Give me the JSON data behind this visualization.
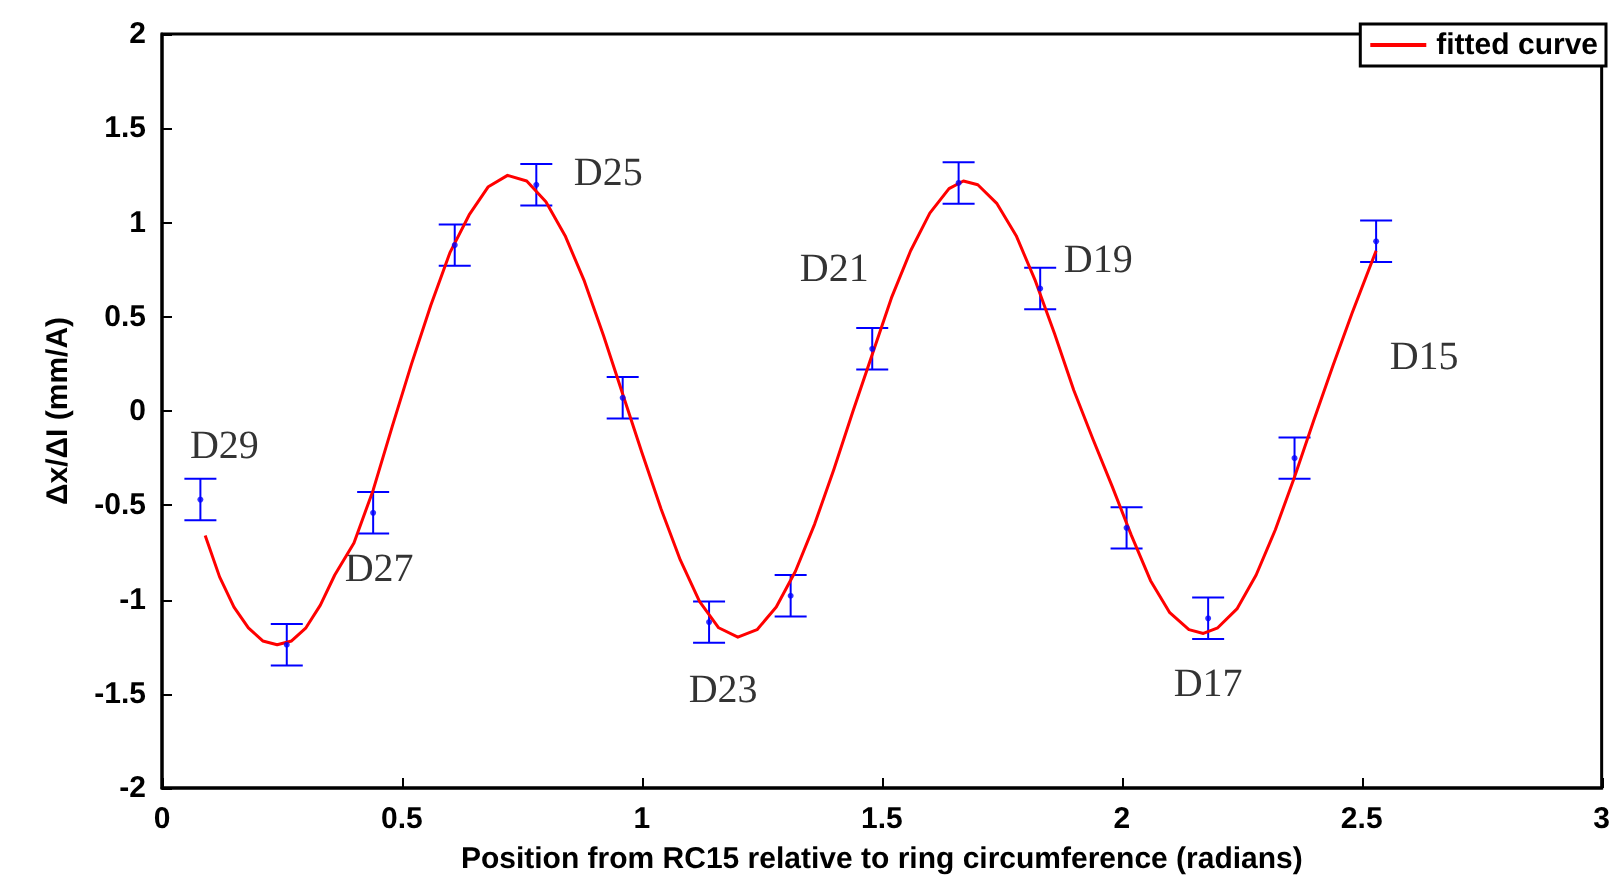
{
  "chart_data": {
    "type": "scatter",
    "xlabel": "Position from RC15 relative to ring circumference (radians)",
    "ylabel": "Δx/ΔI (mm/A)",
    "xlim": [
      0,
      3
    ],
    "xticks": [
      0,
      0.5,
      1,
      1.5,
      2,
      2.5,
      3
    ],
    "ylim": [
      -2,
      2
    ],
    "yticks": [
      -2,
      -1.5,
      -1,
      -0.5,
      0,
      0.5,
      1,
      1.5,
      2
    ],
    "grid": false,
    "legend": "top right",
    "series": [
      {
        "color": "#0000ff",
        "marker": "circle",
        "x": [
          0.08,
          0.26,
          0.44,
          0.61,
          0.78,
          0.96,
          1.14,
          1.31,
          1.48,
          1.66,
          1.83,
          2.01,
          2.18,
          2.36,
          2.53
        ],
        "values": [
          -0.47,
          -1.24,
          -0.54,
          0.88,
          1.2,
          0.07,
          -1.12,
          -0.98,
          0.33,
          1.21,
          0.65,
          -0.62,
          -1.1,
          -0.25,
          0.9
        ],
        "errors": [
          0.11,
          0.11,
          0.11,
          0.11,
          0.11,
          0.11,
          0.11,
          0.11,
          0.11,
          0.11,
          0.11,
          0.11,
          0.11,
          0.11,
          0.11
        ]
      },
      {
        "type": "line",
        "name": "fitted curve",
        "color": "#ff0000",
        "marker": "none",
        "line_style": "solid",
        "x": [
          0.09,
          0.12,
          0.15,
          0.18,
          0.21,
          0.24,
          0.27,
          0.3,
          0.33,
          0.36,
          0.4,
          0.44,
          0.48,
          0.52,
          0.56,
          0.6,
          0.64,
          0.68,
          0.72,
          0.76,
          0.8,
          0.84,
          0.88,
          0.92,
          0.96,
          1.0,
          1.04,
          1.08,
          1.12,
          1.16,
          1.2,
          1.24,
          1.28,
          1.32,
          1.36,
          1.4,
          1.44,
          1.48,
          1.52,
          1.56,
          1.6,
          1.64,
          1.67,
          1.7,
          1.74,
          1.78,
          1.82,
          1.86,
          1.9,
          1.94,
          1.98,
          2.02,
          2.06,
          2.1,
          2.14,
          2.17,
          2.2,
          2.24,
          2.28,
          2.32,
          2.36,
          2.4,
          2.44,
          2.48,
          2.53
        ],
        "values": [
          -0.66,
          -0.88,
          -1.04,
          -1.15,
          -1.22,
          -1.24,
          -1.22,
          -1.15,
          -1.03,
          -0.87,
          -0.7,
          -0.42,
          -0.08,
          0.25,
          0.56,
          0.84,
          1.04,
          1.19,
          1.25,
          1.22,
          1.11,
          0.93,
          0.69,
          0.4,
          0.09,
          -0.22,
          -0.52,
          -0.79,
          -1.01,
          -1.15,
          -1.2,
          -1.16,
          -1.04,
          -0.85,
          -0.6,
          -0.31,
          0.0,
          0.3,
          0.6,
          0.85,
          1.05,
          1.18,
          1.22,
          1.2,
          1.1,
          0.93,
          0.69,
          0.41,
          0.11,
          -0.15,
          -0.4,
          -0.66,
          -0.9,
          -1.07,
          -1.16,
          -1.18,
          -1.15,
          -1.05,
          -0.87,
          -0.63,
          -0.35,
          -0.05,
          0.24,
          0.52,
          0.85
        ]
      }
    ],
    "annotations": [
      {
        "text": "D29",
        "x": 0.08,
        "y": -0.47
      },
      {
        "text": "D27",
        "x": 0.44,
        "y": -0.54
      },
      {
        "text": "D25",
        "x": 0.78,
        "y": 1.2
      },
      {
        "text": "D23",
        "x": 1.14,
        "y": -1.12
      },
      {
        "text": "D21",
        "x": 1.48,
        "y": 0.33
      },
      {
        "text": "D19",
        "x": 1.83,
        "y": 0.65
      },
      {
        "text": "D17",
        "x": 2.18,
        "y": -1.1
      },
      {
        "text": "D15",
        "x": 2.53,
        "y": 0.9
      }
    ]
  }
}
